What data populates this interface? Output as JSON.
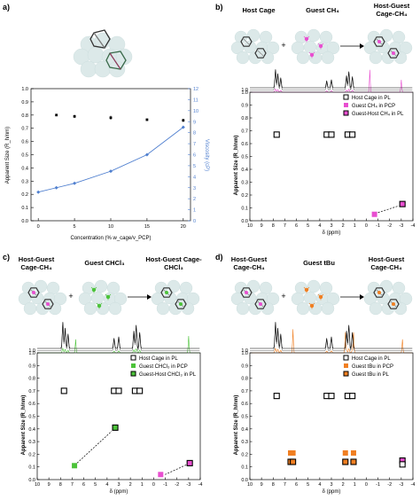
{
  "figure": {
    "panel_labels": [
      "a)",
      "b)",
      "c)",
      "d)"
    ],
    "headers": {
      "b": {
        "left": "Host Cage",
        "middle": "Guest CH₄",
        "right": "Host-Guest Cage-CH₄"
      },
      "c": {
        "left": "Host-Guest Cage-CH₄",
        "middle": "Guest CHCl₃",
        "right": "Host-Guest Cage-CHCl₃"
      },
      "d": {
        "left": "Host-Guest Cage-CH₄",
        "middle": "Guest tBu",
        "right": "Host-Guest Cage-CH₄"
      }
    },
    "plus": "+",
    "arrow": "→",
    "nmr_y_top": "1.0",
    "colors": {
      "host": "#000000",
      "ch4": "#e84fd0",
      "chcl3": "#4cc33a",
      "tbu": "#f07f22",
      "line": "#4f7fcf",
      "cage_blob": "#dce9e9"
    }
  },
  "chart_data": [
    {
      "type": "scatter",
      "panel": "a",
      "xlabel": "Concentration (% w_cage/v_PCP)",
      "ylabel": "Apparent Size (R_h/nm)",
      "y2label": "Viscosity (cP)",
      "xlim": [
        -1,
        21
      ],
      "ylim": [
        0,
        1
      ],
      "y2lim": [
        0,
        12
      ],
      "xticks": [
        0,
        5,
        10,
        15,
        20
      ],
      "yticks": [
        0.0,
        0.1,
        0.2,
        0.3,
        0.4,
        0.5,
        0.6,
        0.7,
        0.8,
        0.9,
        1.0
      ],
      "y2ticks": [
        0,
        1,
        2,
        3,
        4,
        5,
        6,
        7,
        8,
        9,
        10,
        11,
        12
      ],
      "series": [
        {
          "axis": "left",
          "marker": "square",
          "color": "#000000",
          "x": [
            2.5,
            5,
            10,
            15,
            20
          ],
          "y": [
            0.8,
            0.79,
            0.78,
            0.765,
            0.76
          ],
          "err": [
            0.005,
            0.012,
            0.015,
            0.008,
            0.012
          ]
        },
        {
          "axis": "right",
          "marker": "diamond-line",
          "color": "#4f7fcf",
          "x": [
            0,
            2.5,
            5,
            10,
            15,
            20
          ],
          "y": [
            2.6,
            3.0,
            3.4,
            4.5,
            6.0,
            8.5
          ]
        }
      ],
      "grid": false
    },
    {
      "type": "scatter",
      "panel": "b",
      "xlabel": "δ (ppm)",
      "ylabel": "Apparent Size (R_h/nm)",
      "xlim": [
        10,
        -4
      ],
      "ylim": [
        0,
        1.0
      ],
      "xticks": [
        10,
        9,
        8,
        7,
        6,
        5,
        4,
        3,
        2,
        1,
        0,
        -1,
        -2,
        -3,
        -4
      ],
      "yticks": [
        0.0,
        0.1,
        0.2,
        0.3,
        0.4,
        0.5,
        0.6,
        0.7,
        0.8,
        0.9,
        1.0
      ],
      "legend_position": "top-right",
      "series": [
        {
          "name": "Host Cage in PL",
          "marker": "open-square",
          "color": "#000000",
          "x": [
            7.7,
            3.4,
            3.0,
            1.6,
            1.2
          ],
          "y": [
            0.67,
            0.67,
            0.67,
            0.67,
            0.67
          ]
        },
        {
          "name": "Guest CH₄ in PCP",
          "marker": "filled-square",
          "color": "#e84fd0",
          "x": [
            -0.7
          ],
          "y": [
            0.05
          ]
        },
        {
          "name": "Guest-Host CH₄ in PL",
          "marker": "filled-square-outlined",
          "color": "#e84fd0",
          "x": [
            -3.1
          ],
          "y": [
            0.13
          ]
        }
      ]
    },
    {
      "type": "scatter",
      "panel": "c",
      "xlabel": "δ (ppm)",
      "ylabel": "Apparent Size (R_h/nm)",
      "xlim": [
        10,
        -4
      ],
      "ylim": [
        0,
        1.0
      ],
      "xticks": [
        10,
        9,
        8,
        7,
        6,
        5,
        4,
        3,
        2,
        1,
        0,
        -1,
        -2,
        -3,
        -4
      ],
      "yticks": [
        0.0,
        0.1,
        0.2,
        0.3,
        0.4,
        0.5,
        0.6,
        0.7,
        0.8,
        0.9,
        1.0
      ],
      "legend_position": "top-right",
      "series": [
        {
          "name": "Host Cage in PL",
          "marker": "open-square",
          "color": "#000000",
          "x": [
            7.7,
            3.4,
            3.0,
            1.6,
            1.2
          ],
          "y": [
            0.7,
            0.7,
            0.7,
            0.7,
            0.7
          ]
        },
        {
          "name": "Guest CHCl₃ in PCP",
          "marker": "filled-square",
          "color": "#4cc33a",
          "x": [
            6.8
          ],
          "y": [
            0.11
          ]
        },
        {
          "name": "Guest-Host CHCl₃ in PL",
          "marker": "filled-square-outlined",
          "color": "#4cc33a",
          "x": [
            3.3
          ],
          "y": [
            0.41
          ]
        },
        {
          "name": "",
          "marker": "filled-square",
          "color": "#e84fd0",
          "x": [
            -0.6
          ],
          "y": [
            0.04
          ]
        },
        {
          "name": "",
          "marker": "filled-square-outlined",
          "color": "#e84fd0",
          "x": [
            -3.1
          ],
          "y": [
            0.13
          ]
        }
      ]
    },
    {
      "type": "scatter",
      "panel": "d",
      "xlabel": "δ (ppm)",
      "ylabel": "Apparent Size (R_h/nm)",
      "xlim": [
        10,
        -4
      ],
      "ylim": [
        0,
        1.0
      ],
      "xticks": [
        10,
        9,
        8,
        7,
        6,
        5,
        4,
        3,
        2,
        1,
        0,
        -1,
        -2,
        -3,
        -4
      ],
      "yticks": [
        0.0,
        0.1,
        0.2,
        0.3,
        0.4,
        0.5,
        0.6,
        0.7,
        0.8,
        0.9,
        1.0
      ],
      "legend_position": "top-right",
      "series": [
        {
          "name": "Host Cage in PL",
          "marker": "open-square",
          "color": "#000000",
          "x": [
            7.7,
            3.4,
            3.0,
            1.6,
            1.2
          ],
          "y": [
            0.66,
            0.66,
            0.66,
            0.66,
            0.66
          ]
        },
        {
          "name": "Guest tBu in PCP",
          "marker": "filled-square",
          "color": "#f07f22",
          "x": [
            6.5,
            6.3,
            1.8,
            1.1
          ],
          "y": [
            0.21,
            0.21,
            0.21,
            0.21
          ]
        },
        {
          "name": "Guest tBu in PL",
          "marker": "filled-square-outlined",
          "color": "#f07f22",
          "x": [
            6.5,
            6.3,
            1.8,
            1.1
          ],
          "y": [
            0.14,
            0.14,
            0.14,
            0.14
          ]
        },
        {
          "name": "",
          "marker": "filled-square-outlined",
          "color": "#e84fd0",
          "x": [
            -3.1
          ],
          "y": [
            0.15
          ]
        },
        {
          "name": "",
          "marker": "open-square",
          "color": "#000000",
          "x": [
            -3.1
          ],
          "y": [
            0.12
          ]
        }
      ]
    }
  ]
}
